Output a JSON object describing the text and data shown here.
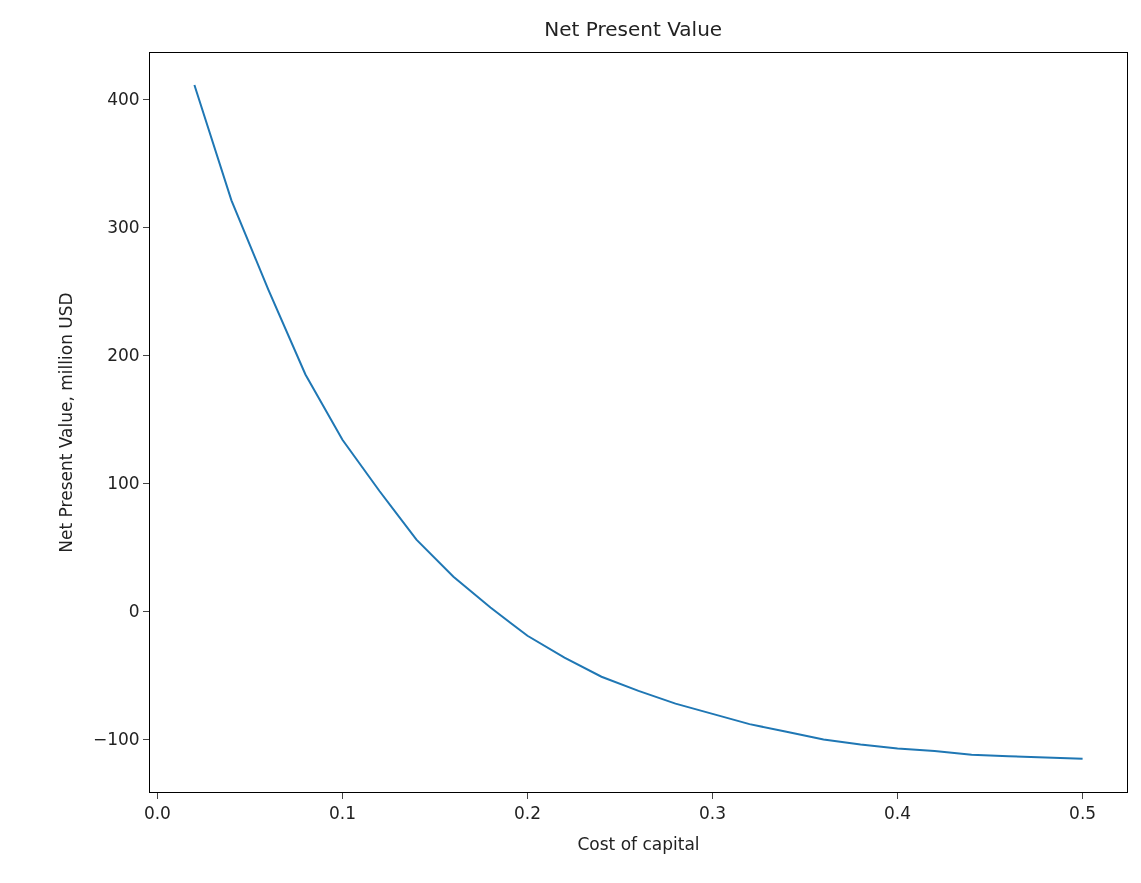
{
  "chart_data": {
    "type": "line",
    "title": "Net Present Value",
    "xlabel": "Cost of capital",
    "ylabel": "Net Present Value, million USD",
    "x": [
      0.02,
      0.04,
      0.06,
      0.08,
      0.1,
      0.12,
      0.14,
      0.16,
      0.18,
      0.2,
      0.22,
      0.24,
      0.26,
      0.28,
      0.3,
      0.32,
      0.34,
      0.36,
      0.38,
      0.4,
      0.42,
      0.44,
      0.46,
      0.48,
      0.5
    ],
    "series": [
      {
        "color": "#1f77b4",
        "values": [
          411,
          321,
          251,
          185,
          134,
          94,
          56,
          27,
          3,
          -19,
          -36,
          -51,
          -62,
          -72,
          -80,
          -88,
          -94,
          -100,
          -104,
          -107,
          -109,
          -112,
          -113,
          -114,
          -115
        ]
      }
    ],
    "xlim": [
      -0.004,
      0.524
    ],
    "ylim": [
      -141,
      436
    ],
    "xticks": [
      {
        "value": 0,
        "label": "0.0"
      },
      0.1,
      0.2,
      0.3,
      0.4,
      0.5
    ],
    "yticks": [
      {
        "value": -100,
        "label": "−100"
      },
      0,
      100,
      200,
      300,
      400
    ],
    "legend": false,
    "marker": "none",
    "line_style": "solid"
  }
}
